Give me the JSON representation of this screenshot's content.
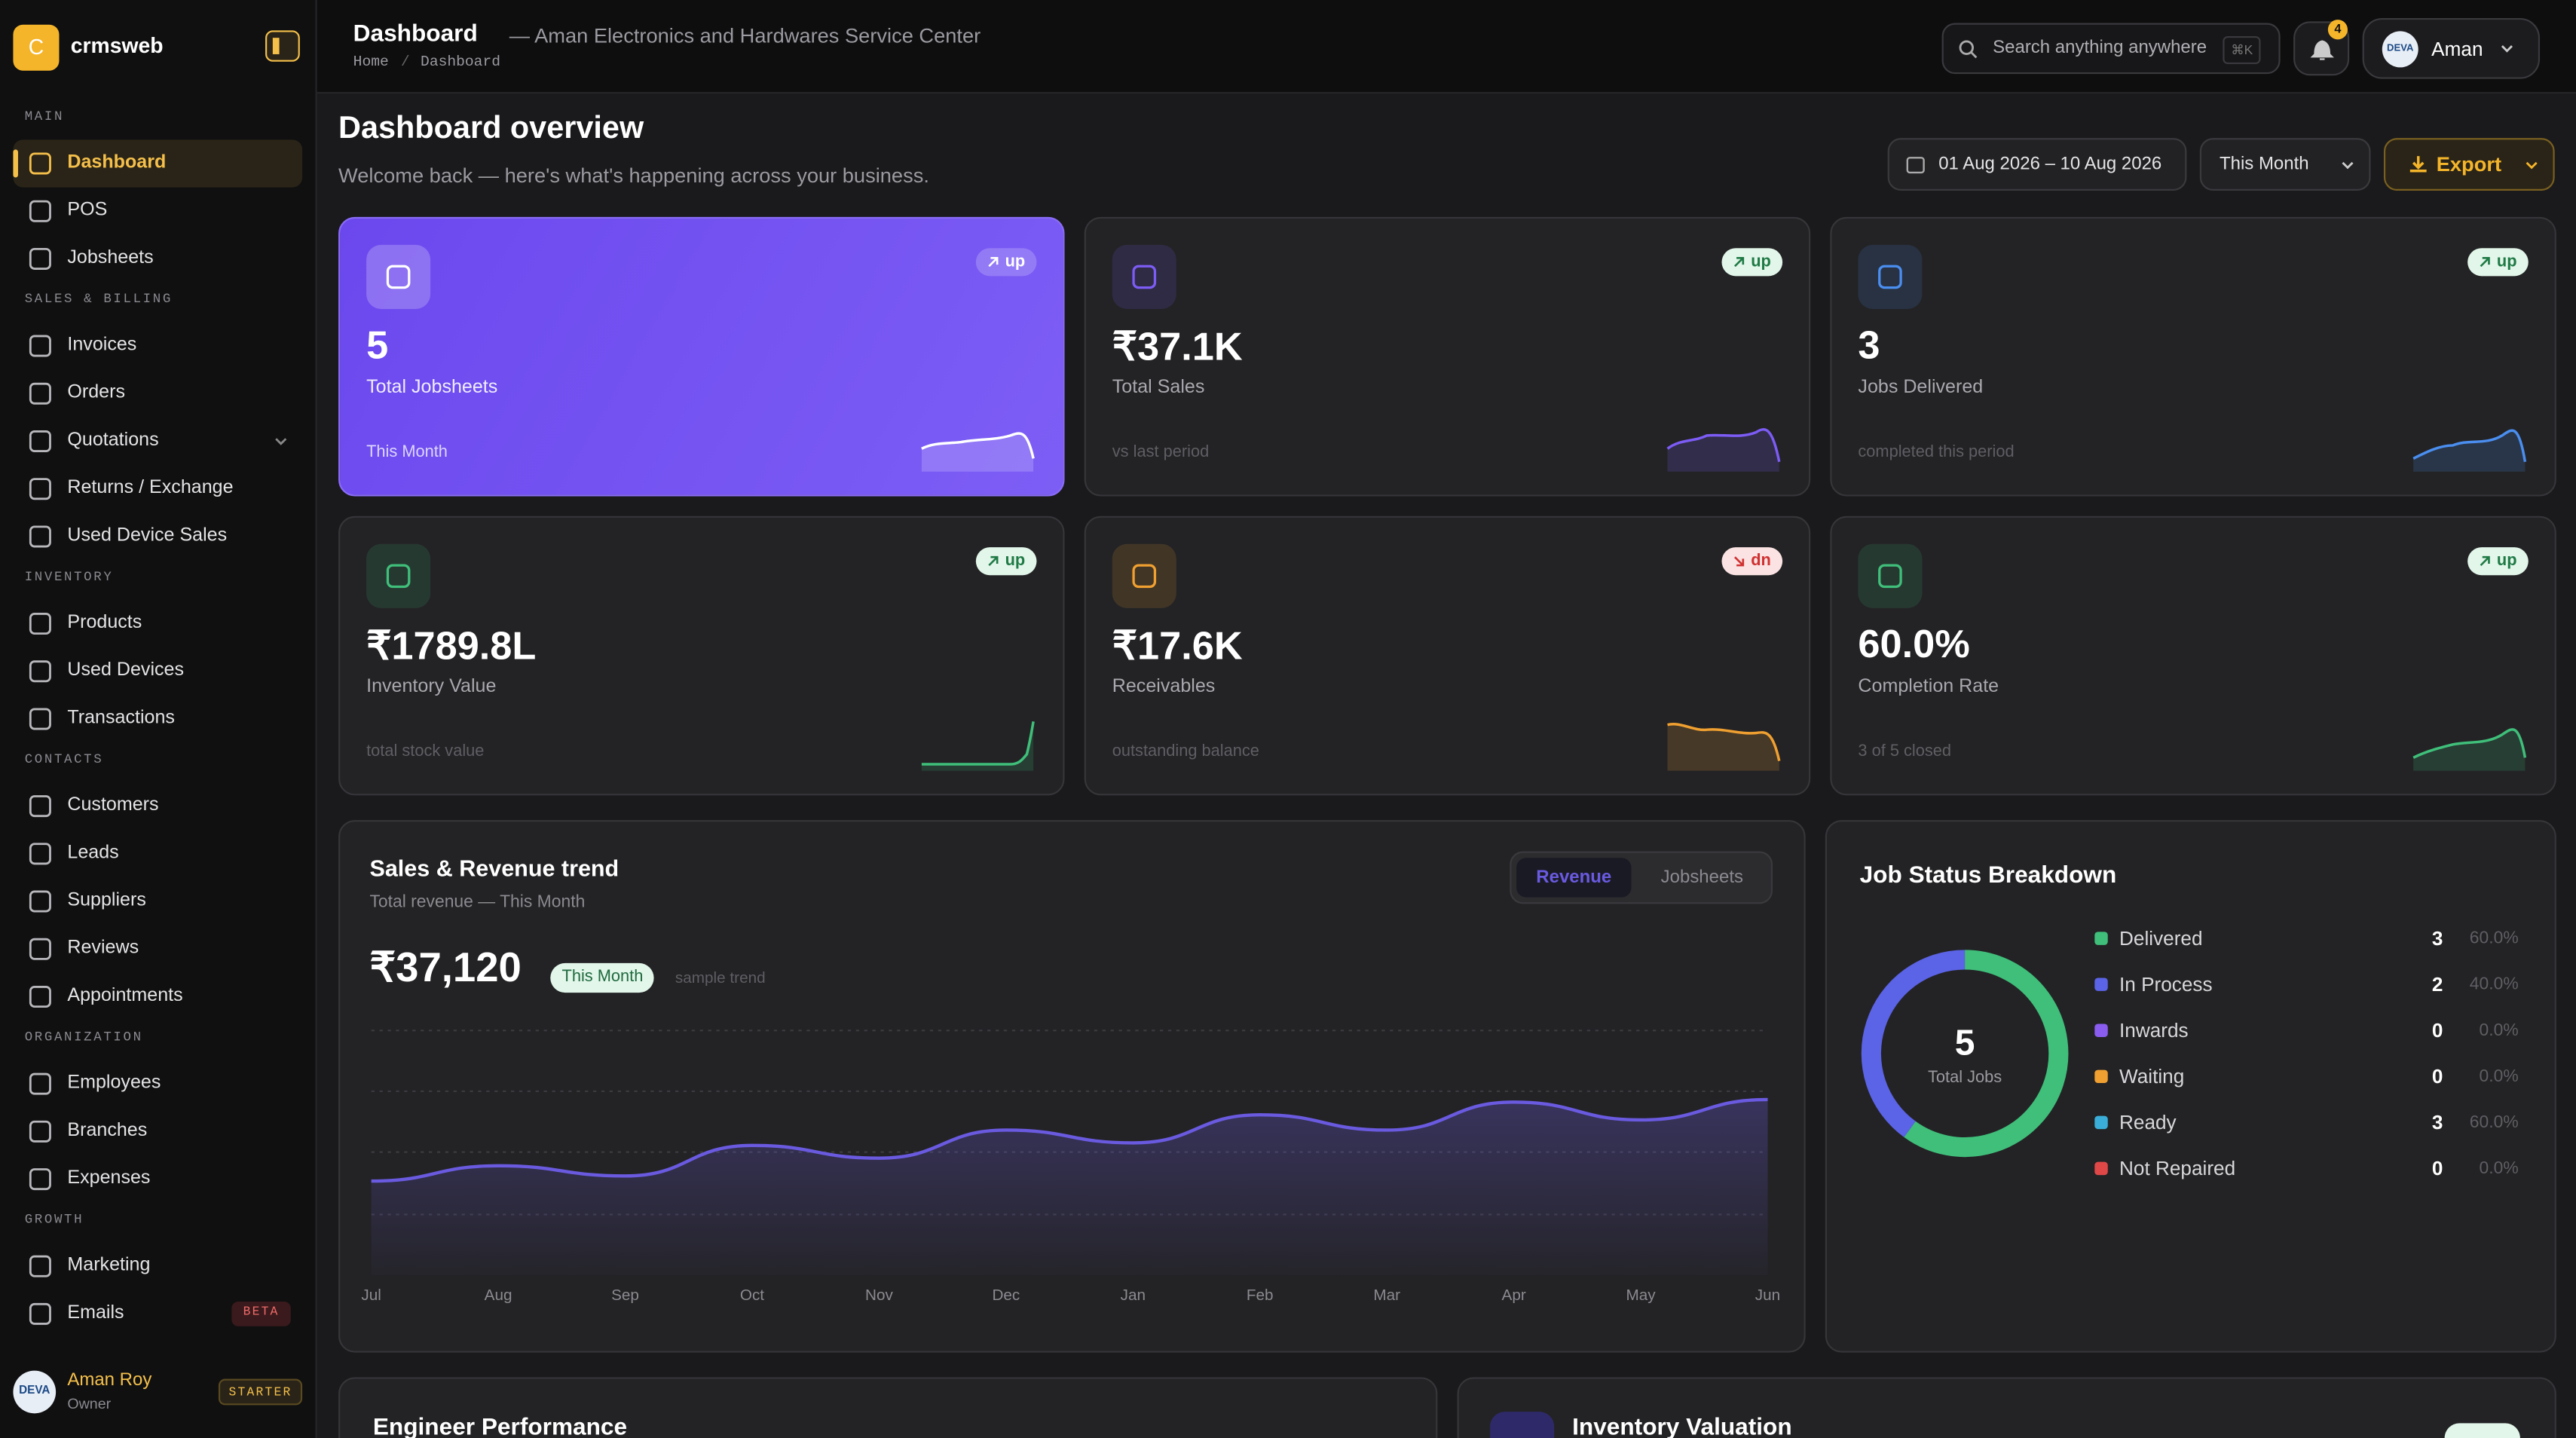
{
  "sidebar": {
    "logo_letter": "C",
    "brand": "crmsweb",
    "sections": [
      {
        "title": "MAIN",
        "items": [
          "Dashboard",
          "POS",
          "Jobsheets"
        ]
      },
      {
        "title": "SALES & BILLING",
        "items": [
          "Invoices",
          "Orders",
          "Quotations",
          "Returns / Exchange",
          "Used Device Sales"
        ]
      },
      {
        "title": "INVENTORY",
        "items": [
          "Products",
          "Used Devices",
          "Transactions"
        ]
      },
      {
        "title": "CONTACTS",
        "items": [
          "Customers",
          "Leads",
          "Suppliers",
          "Reviews",
          "Appointments"
        ]
      },
      {
        "title": "ORGANIZATION",
        "items": [
          "Employees",
          "Branches",
          "Expenses"
        ]
      },
      {
        "title": "GROWTH",
        "items": [
          "Marketing",
          "Emails"
        ]
      }
    ],
    "beta_badge": "BETA",
    "user": {
      "avatar": "DEVA",
      "name": "Aman Roy",
      "role": "Owner",
      "plan": "STARTER"
    }
  },
  "header": {
    "title": "Dashboard",
    "subtitle": "— Aman Electronics and Hardwares Service Center",
    "breadcrumb": [
      "Home",
      "Dashboard"
    ],
    "breadcrumb_separator": "/",
    "search_placeholder": "Search anything anywhere",
    "search_shortcut": "⌘K",
    "notifications": "4",
    "user_avatar": "DEVA",
    "user_name": "Aman"
  },
  "page": {
    "title": "Dashboard overview",
    "subtitle": "Welcome back — here's what's happening across your business.",
    "date_range": "01 Aug 2026 – 10 Aug 2026",
    "period": "This Month",
    "export": "Export"
  },
  "kpis": [
    {
      "value": "5",
      "label": "Total Jobsheets",
      "note": "This Month",
      "trend": "up",
      "color": "#ffffff"
    },
    {
      "value": "₹37.1K",
      "label": "Total Sales",
      "note": "vs last period",
      "trend": "up",
      "color": "#7c5cf5"
    },
    {
      "value": "3",
      "label": "Jobs Delivered",
      "note": "completed this period",
      "trend": "up",
      "color": "#4a8ef0"
    },
    {
      "value": "₹1789.8L",
      "label": "Inventory Value",
      "note": "total stock value",
      "trend": "up",
      "color": "#3fbf7a"
    },
    {
      "value": "₹17.6K",
      "label": "Receivables",
      "note": "outstanding balance",
      "trend": "dn",
      "color": "#f0a030"
    },
    {
      "value": "60.0%",
      "label": "Completion Rate",
      "note": "3 of 5 closed",
      "trend": "up",
      "color": "#3fbf7a"
    }
  ],
  "trend": {
    "title": "Sales & Revenue trend",
    "subtitle": "Total revenue — This Month",
    "total": "₹37,120",
    "badge": "This Month",
    "note": "sample trend",
    "tabs": [
      "Revenue",
      "Jobsheets"
    ],
    "chart_data": {
      "type": "line",
      "categories": [
        "Jul",
        "Aug",
        "Sep",
        "Oct",
        "Nov",
        "Dec",
        "Jan",
        "Feb",
        "Mar",
        "Apr",
        "May",
        "Jun"
      ],
      "values": [
        37,
        43,
        39,
        51,
        46,
        57,
        52,
        63,
        57,
        68,
        61,
        69
      ],
      "color": "#6a5ae0",
      "ylim": [
        0,
        100
      ]
    }
  },
  "job_status": {
    "title": "Job Status Breakdown",
    "total": 5,
    "total_label": "Total Jobs",
    "items": [
      {
        "name": "Delivered",
        "count": 3,
        "share": "60.0%",
        "color": "#3fbf7a"
      },
      {
        "name": "In Process",
        "count": 2,
        "share": "40.0%",
        "color": "#5b63e6"
      },
      {
        "name": "Inwards",
        "count": 0,
        "share": "0.0%",
        "color": "#8a5cf0"
      },
      {
        "name": "Waiting",
        "count": 0,
        "share": "0.0%",
        "color": "#f0a030"
      },
      {
        "name": "Ready",
        "count": 3,
        "share": "60.0%",
        "color": "#3aaed8"
      },
      {
        "name": "Not Repaired",
        "count": 0,
        "share": "0.0%",
        "color": "#e04848"
      }
    ]
  },
  "bottom": {
    "left_title": "Engineer Performance",
    "right_title": "Inventory Valuation"
  }
}
